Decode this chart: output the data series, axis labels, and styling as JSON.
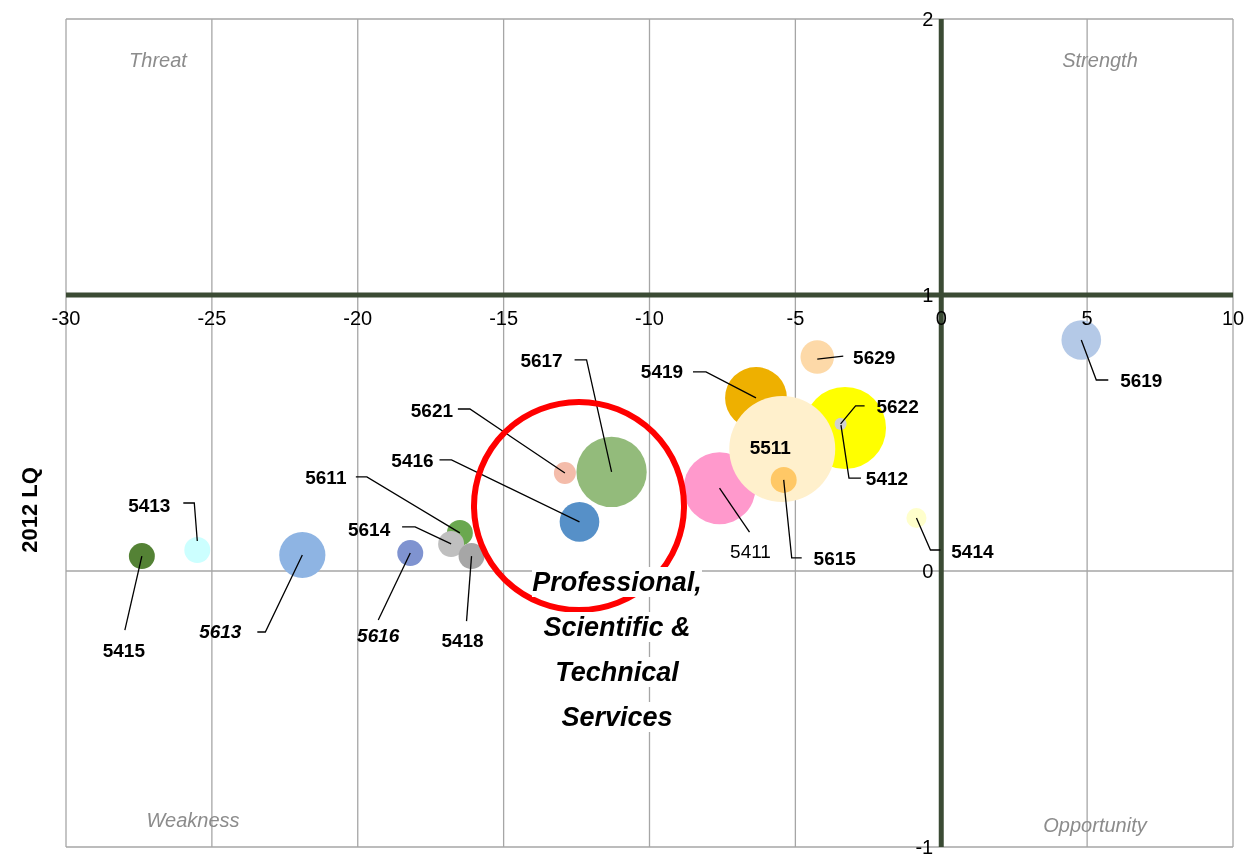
{
  "chart_data": {
    "type": "bubble",
    "ylabel": "2012 LQ",
    "xlim": [
      -30,
      10
    ],
    "xticks": [
      -30,
      -25,
      -20,
      -15,
      -10,
      -5,
      0,
      5,
      10
    ],
    "ylim": [
      -1,
      2
    ],
    "yticks": [
      -1,
      0,
      1,
      2
    ],
    "grid": true,
    "annotations": [
      "Threat",
      "Strength",
      "Weakness",
      "Opportunity",
      "Professional, Scientific & Technical Services"
    ],
    "series": [
      {
        "name": "5415",
        "color": "#548235",
        "x": [
          -27.4
        ],
        "values": [
          0.054
        ],
        "sizes": [
          0.06
        ]
      },
      {
        "name": "5413",
        "color": "#ccffff",
        "x": [
          -25.5
        ],
        "values": [
          0.076
        ],
        "sizes": [
          0.06
        ]
      },
      {
        "name": "5613",
        "color": "#8eb4e3",
        "x": [
          -21.9
        ],
        "values": [
          0.058
        ],
        "sizes": [
          0.19
        ]
      },
      {
        "name": "5616",
        "color": "#7f93d0",
        "x": [
          -18.2
        ],
        "values": [
          0.065
        ],
        "sizes": [
          0.06
        ]
      },
      {
        "name": "5611",
        "color": "#6aa84f",
        "x": [
          -16.5
        ],
        "values": [
          0.138
        ],
        "sizes": [
          0.06
        ]
      },
      {
        "name": "5614",
        "color": "#bfbfbf",
        "x": [
          -16.8
        ],
        "values": [
          0.098
        ],
        "sizes": [
          0.06
        ]
      },
      {
        "name": "5418",
        "color": "#a6a6a6",
        "x": [
          -16.1
        ],
        "values": [
          0.054
        ],
        "sizes": [
          0.06
        ]
      },
      {
        "name": "5416",
        "color": "#5690c8",
        "x": [
          -12.4
        ],
        "values": [
          0.178
        ],
        "sizes": [
          0.14
        ]
      },
      {
        "name": "5621",
        "color": "#f4bcaa",
        "x": [
          -12.9
        ],
        "values": [
          0.355
        ],
        "sizes": [
          0.043
        ]
      },
      {
        "name": "5617",
        "color": "#93bb7b",
        "x": [
          -11.3
        ],
        "values": [
          0.359
        ],
        "sizes": [
          0.44
        ]
      },
      {
        "name": "5419",
        "color": "#eeb000",
        "x": [
          -6.35
        ],
        "values": [
          0.627
        ],
        "sizes": [
          0.34
        ]
      },
      {
        "name": "5412",
        "color": "#ffff00",
        "x": [
          -3.3
        ],
        "values": [
          0.518
        ],
        "sizes": [
          0.6
        ]
      },
      {
        "name": "5411",
        "color": "#ff99cc",
        "x": [
          -7.6
        ],
        "values": [
          0.3
        ],
        "sizes": [
          0.46
        ]
      },
      {
        "name": "5511",
        "color": "#fff0cc",
        "x": [
          -5.45
        ],
        "values": [
          0.442
        ],
        "sizes": [
          1
        ]
      },
      {
        "name": "5615",
        "color": "#ffc866",
        "x": [
          -5.4
        ],
        "values": [
          0.33
        ],
        "sizes": [
          0.06
        ]
      },
      {
        "name": "5622",
        "color": "#d0d0d0",
        "x": [
          -3.45
        ],
        "values": [
          0.533
        ],
        "sizes": [
          0.013
        ]
      },
      {
        "name": "5629",
        "color": "#fdd9a8",
        "x": [
          -4.25
        ],
        "values": [
          0.775
        ],
        "sizes": [
          0.1
        ]
      },
      {
        "name": "5414",
        "color": "#ffffcc",
        "x": [
          -0.85
        ],
        "values": [
          0.192
        ],
        "sizes": [
          0.036
        ]
      },
      {
        "name": "5619",
        "color": "#b4c9e7",
        "x": [
          4.8
        ],
        "values": [
          0.837
        ],
        "sizes": [
          0.14
        ]
      }
    ]
  }
}
